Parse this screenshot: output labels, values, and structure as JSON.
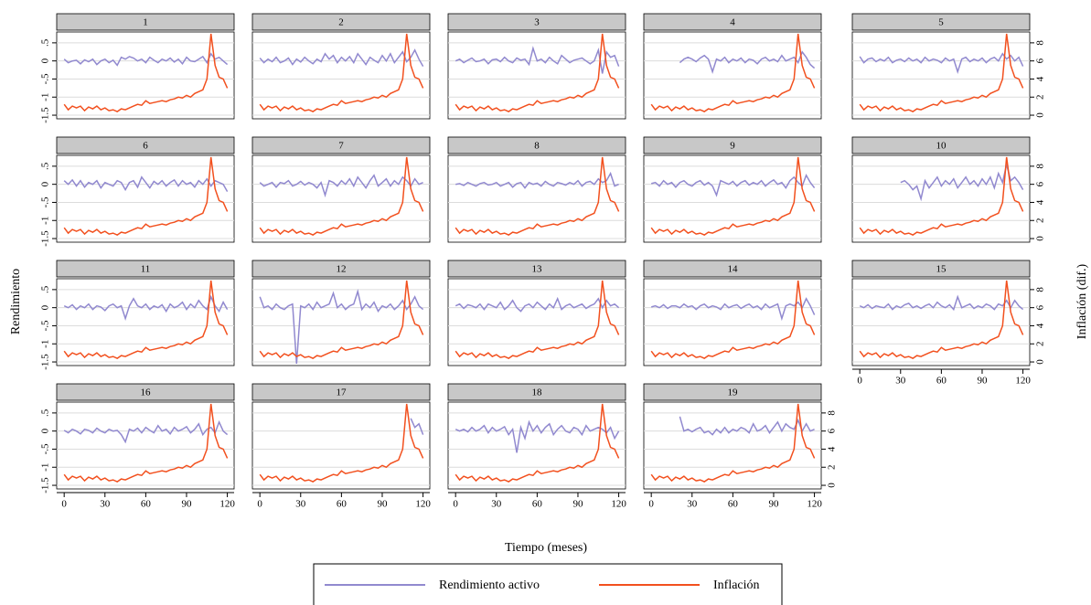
{
  "chart_data": {
    "type": "line",
    "xlabel": "Tiempo (meses)",
    "ylabel": "Rendimiento",
    "y2label": "Inflación (dif.)",
    "x": [
      0,
      3,
      6,
      9,
      12,
      15,
      18,
      21,
      24,
      27,
      30,
      33,
      36,
      39,
      42,
      45,
      48,
      51,
      54,
      57,
      60,
      63,
      66,
      69,
      72,
      75,
      78,
      81,
      84,
      87,
      90,
      93,
      96,
      99,
      102,
      105,
      108,
      111,
      114,
      117,
      120
    ],
    "xlim": [
      -5.5,
      125
    ],
    "xticks": [
      0,
      30,
      60,
      90,
      120
    ],
    "ylim": [
      -1.6,
      0.8
    ],
    "yticks": [
      -1.5,
      -1,
      {
        "value": -0.5,
        "label": "-.5"
      },
      0,
      {
        "value": 0.5,
        "label": ".5"
      }
    ],
    "y2lim": [
      -0.4,
      9.2
    ],
    "y2ticks": [
      0,
      2,
      4,
      6,
      8
    ],
    "grid": true,
    "series": [
      {
        "name": "Rendimiento activo",
        "color": "#9189cf"
      },
      {
        "name": "Inflación",
        "color": "#f2501e",
        "axis": "y2",
        "values": [
          1.2,
          0.6,
          1.0,
          0.8,
          1.0,
          0.5,
          0.9,
          0.7,
          1.0,
          0.6,
          0.8,
          0.5,
          0.6,
          0.4,
          0.7,
          0.6,
          0.8,
          1.0,
          1.2,
          1.1,
          1.6,
          1.3,
          1.4,
          1.5,
          1.6,
          1.5,
          1.7,
          1.8,
          2.0,
          1.9,
          2.2,
          2.0,
          2.4,
          2.6,
          2.8,
          4.0,
          9.0,
          5.5,
          4.2,
          4.0,
          3.0
        ]
      }
    ],
    "panels": [
      {
        "title": "1",
        "values": [
          0.05,
          -0.05,
          0,
          0.02,
          -0.08,
          0.03,
          -0.02,
          0.05,
          -0.1,
          0,
          0.05,
          -0.05,
          0.02,
          -0.12,
          0.1,
          0.05,
          0.12,
          0.08,
          0,
          0.05,
          -0.05,
          0.1,
          0.02,
          -0.05,
          0.05,
          0,
          0.08,
          -0.03,
          0.05,
          -0.08,
          0.1,
          0,
          -0.02,
          0.05,
          0.12,
          -0.05,
          0.2,
          0.05,
          0.1,
          0,
          -0.1
        ]
      },
      {
        "title": "2",
        "values": [
          0.08,
          -0.05,
          0.05,
          -0.02,
          0.1,
          -0.05,
          0,
          0.08,
          -0.1,
          0.05,
          -0.03,
          0.1,
          0,
          -0.08,
          0.05,
          -0.02,
          0.2,
          0.05,
          0.15,
          -0.05,
          0.1,
          0,
          0.12,
          -0.05,
          0.2,
          0.05,
          -0.1,
          0.1,
          0.02,
          -0.05,
          0.15,
          0,
          0.2,
          -0.05,
          0.1,
          0.25,
          -0.02,
          0.1,
          0.3,
          0.05,
          -0.15
        ]
      },
      {
        "title": "3",
        "values": [
          0,
          0.05,
          -0.05,
          0.02,
          0.08,
          -0.02,
          0,
          0.05,
          -0.08,
          0.03,
          0.05,
          -0.02,
          0.1,
          0,
          -0.05,
          0.08,
          0.02,
          0.05,
          -0.1,
          0.35,
          0,
          0.05,
          -0.05,
          0.1,
          0,
          -0.08,
          0.15,
          0.05,
          -0.05,
          0.02,
          0.05,
          0.08,
          0,
          -0.08,
          0,
          0.3,
          -0.35,
          0.25,
          0.1,
          0.15,
          -0.15
        ]
      },
      {
        "title": "4",
        "values": [
          null,
          null,
          null,
          null,
          null,
          null,
          null,
          -0.05,
          0.05,
          0.1,
          0.05,
          -0.02,
          0.08,
          0.15,
          0.05,
          -0.3,
          0.05,
          0,
          0.1,
          -0.05,
          0.05,
          0,
          0.08,
          -0.05,
          0.05,
          0.02,
          -0.08,
          0.05,
          0.1,
          0,
          0.05,
          -0.02,
          0.15,
          0,
          0.05,
          0.1,
          -0.05,
          0.25,
          0.1,
          -0.1,
          -0.2
        ]
      },
      {
        "title": "5",
        "values": [
          0.12,
          -0.05,
          0.05,
          0.08,
          -0.02,
          0.05,
          0,
          0.1,
          -0.05,
          0.02,
          0.05,
          -0.02,
          0.08,
          0,
          0.05,
          -0.05,
          0.1,
          0,
          0.05,
          0.02,
          -0.05,
          0.08,
          0,
          0.05,
          -0.3,
          0.05,
          0.1,
          -0.02,
          0.05,
          0,
          0.08,
          -0.05,
          0.05,
          0.1,
          0,
          0.2,
          0.05,
          0.15,
          0,
          0.1,
          -0.15
        ]
      },
      {
        "title": "6",
        "values": [
          0.1,
          0,
          0.12,
          -0.05,
          0.1,
          -0.08,
          0.05,
          0,
          0.1,
          -0.1,
          0.05,
          0,
          -0.05,
          0.1,
          0.05,
          -0.15,
          0.05,
          0.1,
          -0.08,
          0.2,
          0.05,
          -0.1,
          0.08,
          0,
          0.1,
          -0.05,
          0.05,
          0.12,
          -0.05,
          0.1,
          0,
          0.05,
          -0.08,
          0.1,
          0,
          0.15,
          -0.05,
          0.1,
          0.05,
          0,
          -0.2
        ]
      },
      {
        "title": "7",
        "values": [
          0.05,
          -0.05,
          0,
          0.05,
          -0.08,
          0.05,
          0.02,
          0.1,
          -0.05,
          0,
          0.08,
          -0.02,
          0.05,
          0,
          -0.1,
          0.05,
          -0.3,
          0.1,
          0.05,
          -0.05,
          0.1,
          0,
          0.15,
          -0.05,
          0.2,
          0.05,
          -0.1,
          0.1,
          0.25,
          -0.05,
          0.05,
          0.15,
          -0.05,
          0.1,
          0,
          0.2,
          0.1,
          -0.05,
          0.15,
          0,
          0.05
        ]
      },
      {
        "title": "8",
        "values": [
          0,
          0.02,
          -0.03,
          0.05,
          0,
          -0.05,
          0.02,
          0.05,
          -0.02,
          0,
          0.05,
          -0.05,
          0,
          0.05,
          -0.08,
          0.02,
          0.05,
          -0.1,
          0.05,
          0,
          0.03,
          -0.05,
          0.08,
          0,
          -0.05,
          0.05,
          0.02,
          -0.02,
          0.05,
          0,
          0.1,
          -0.05,
          0.05,
          0.08,
          0,
          0.15,
          0.05,
          0.1,
          0.3,
          -0.05,
          0
        ]
      },
      {
        "title": "9",
        "values": [
          0.02,
          0.05,
          -0.05,
          0.1,
          0,
          0.05,
          -0.08,
          0.05,
          0.1,
          0,
          -0.05,
          0.05,
          0.1,
          -0.02,
          0.05,
          -0.05,
          -0.3,
          0.1,
          0.05,
          0,
          0.08,
          -0.05,
          0.05,
          0.1,
          -0.02,
          0.05,
          0,
          0.1,
          -0.05,
          0.05,
          0.12,
          0,
          0.05,
          -0.1,
          0.1,
          0.2,
          0.05,
          -0.05,
          0.25,
          0.05,
          -0.1
        ]
      },
      {
        "title": "10",
        "values": [
          null,
          null,
          null,
          null,
          null,
          null,
          null,
          null,
          null,
          null,
          0.05,
          0.1,
          0,
          -0.15,
          -0.05,
          -0.4,
          0.1,
          -0.1,
          0.05,
          0.2,
          -0.05,
          0.1,
          0,
          0.15,
          -0.1,
          0.05,
          0.2,
          0,
          0.1,
          -0.05,
          0.15,
          0,
          0.2,
          -0.1,
          0.3,
          0.05,
          0.55,
          0.1,
          0.2,
          0.05,
          -0.15
        ]
      },
      {
        "title": "11",
        "values": [
          0.05,
          0,
          0.08,
          -0.05,
          0.05,
          0,
          0.1,
          -0.05,
          0.05,
          0.02,
          -0.08,
          0.05,
          0.1,
          0,
          0.05,
          -0.3,
          0.05,
          0.25,
          0.05,
          0,
          0.1,
          -0.05,
          0.05,
          0,
          0.08,
          -0.1,
          0.1,
          0,
          0.05,
          0.15,
          -0.05,
          0.1,
          0,
          0.2,
          0.05,
          -0.05,
          0.3,
          0.05,
          -0.1,
          0.15,
          -0.05
        ]
      },
      {
        "title": "12",
        "values": [
          0.3,
          0,
          0.05,
          -0.05,
          0.1,
          0,
          -0.05,
          0.05,
          0.1,
          -1.55,
          0.05,
          0,
          0.1,
          -0.05,
          0.15,
          0,
          0.05,
          0.1,
          0.4,
          0,
          0.1,
          -0.05,
          0.05,
          0.1,
          0.45,
          -0.05,
          0.1,
          0,
          0.15,
          -0.1,
          0.05,
          0,
          0.1,
          -0.05,
          0.05,
          0.2,
          -0.05,
          0.1,
          0.3,
          0.05,
          -0.05
        ]
      },
      {
        "title": "13",
        "values": [
          0.05,
          0.1,
          -0.02,
          0.08,
          0.05,
          0,
          0.1,
          -0.05,
          0.1,
          0.05,
          0,
          0.15,
          -0.05,
          0.05,
          0.2,
          0,
          -0.1,
          0.05,
          0.1,
          0,
          0.15,
          0.05,
          -0.05,
          0.1,
          0,
          0.25,
          -0.05,
          0.05,
          0.1,
          0,
          0.05,
          0.1,
          -0.02,
          0.05,
          0.1,
          0.25,
          0,
          0.2,
          0.05,
          0.1,
          0
        ]
      },
      {
        "title": "14",
        "values": [
          0.02,
          0.05,
          0,
          0.08,
          -0.02,
          0.05,
          0.05,
          0,
          0.1,
          0.02,
          0.05,
          -0.05,
          0.05,
          0.1,
          0,
          0.05,
          0.02,
          -0.05,
          0.1,
          0,
          0.05,
          0.08,
          -0.02,
          0.05,
          0.1,
          0,
          0.05,
          -0.05,
          0.1,
          0,
          0.05,
          0.1,
          -0.3,
          0.05,
          0.1,
          0.05,
          0.15,
          0,
          0.25,
          0.05,
          -0.2
        ]
      },
      {
        "title": "15",
        "values": [
          0.05,
          0,
          0.08,
          -0.02,
          0.05,
          0.02,
          0,
          0.1,
          -0.05,
          0.05,
          0,
          0.08,
          0.12,
          0,
          0.05,
          -0.02,
          0.05,
          0.1,
          0,
          0.15,
          0.05,
          0,
          0.08,
          -0.05,
          0.3,
          0,
          0.05,
          0.1,
          -0.02,
          0.05,
          0,
          0.1,
          0.05,
          -0.05,
          0.1,
          0.05,
          0.2,
          0,
          0.2,
          0.05,
          -0.05
        ]
      },
      {
        "title": "16",
        "values": [
          0.02,
          -0.05,
          0.05,
          0,
          -0.08,
          0.05,
          0.02,
          -0.05,
          0.08,
          0,
          -0.05,
          0.05,
          0,
          0.02,
          -0.1,
          -0.3,
          0.05,
          0,
          0.08,
          -0.05,
          0.1,
          0.02,
          -0.05,
          0.15,
          0,
          0.05,
          -0.08,
          0.1,
          0,
          0.05,
          0.12,
          -0.05,
          0.05,
          0.2,
          -0.1,
          0.05,
          0.1,
          -0.05,
          0.25,
          0,
          -0.1
        ]
      },
      {
        "title": "17",
        "values": [
          null,
          null,
          null,
          null,
          null,
          null,
          null,
          null,
          null,
          null,
          null,
          null,
          null,
          null,
          null,
          null,
          null,
          null,
          null,
          null,
          null,
          null,
          null,
          null,
          null,
          null,
          null,
          null,
          null,
          null,
          null,
          null,
          null,
          null,
          null,
          null,
          null,
          0.35,
          0.1,
          0.2,
          -0.1
        ]
      },
      {
        "title": "18",
        "values": [
          0.05,
          0,
          0.05,
          -0.02,
          0.1,
          0,
          0.05,
          0.15,
          -0.05,
          0.1,
          0,
          0.05,
          0.12,
          -0.1,
          0.05,
          -0.6,
          0.1,
          -0.2,
          0.25,
          0,
          0.15,
          -0.05,
          0.1,
          0.2,
          -0.1,
          0.05,
          0.15,
          0,
          -0.05,
          0.1,
          0.05,
          -0.1,
          0.15,
          0,
          0.05,
          0.1,
          0.05,
          -0.05,
          0.1,
          -0.2,
          0
        ]
      },
      {
        "title": "19",
        "values": [
          null,
          null,
          null,
          null,
          null,
          null,
          null,
          0.4,
          0,
          0.05,
          -0.02,
          0.05,
          0.1,
          -0.05,
          0,
          -0.1,
          0.05,
          -0.05,
          0.1,
          -0.05,
          0.05,
          0,
          0.1,
          0.05,
          -0.05,
          0.2,
          0,
          0.05,
          0.15,
          -0.05,
          0.1,
          0.25,
          0,
          0.2,
          0.1,
          0.05,
          0.3,
          0,
          0.2,
          0,
          0.05
        ]
      }
    ]
  }
}
